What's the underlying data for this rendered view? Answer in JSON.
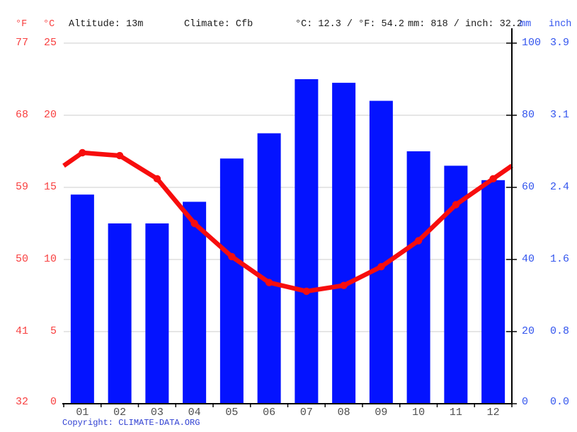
{
  "header": {
    "f_unit": "°F",
    "c_unit": "°C",
    "altitude": "Altitude: 13m",
    "climate": "Climate: Cfb",
    "temperature_summary": "°C: 12.3 / °F: 54.2",
    "precipitation_summary": "mm: 818 / inch: 32.2",
    "mm_unit": "mm",
    "inch_unit": "inch"
  },
  "axis_left": {
    "fahrenheit": [
      "77",
      "68",
      "59",
      "50",
      "41",
      "32"
    ],
    "celsius": [
      "25",
      "20",
      "15",
      "10",
      "5",
      "0"
    ]
  },
  "axis_right": {
    "mm": [
      "100",
      "80",
      "60",
      "40",
      "20",
      "0"
    ],
    "inch": [
      "3.9",
      "3.1",
      "2.4",
      "1.6",
      "0.8",
      "0.0"
    ]
  },
  "months": [
    "01",
    "02",
    "03",
    "04",
    "05",
    "06",
    "07",
    "08",
    "09",
    "10",
    "11",
    "12"
  ],
  "chart_data": {
    "type": "combo",
    "categories": [
      "01",
      "02",
      "03",
      "04",
      "05",
      "06",
      "07",
      "08",
      "09",
      "10",
      "11",
      "12"
    ],
    "series": [
      {
        "name": "Precipitation",
        "type": "bar",
        "unit": "mm",
        "color": "#0413ff",
        "values": [
          58,
          50,
          50,
          56,
          68,
          75,
          90,
          89,
          84,
          70,
          66,
          62
        ],
        "total_mm": 818,
        "total_inch": 32.2
      },
      {
        "name": "Temperature",
        "type": "line",
        "unit": "°C",
        "color": "#f70d0d",
        "values": [
          17.4,
          17.2,
          15.6,
          12.5,
          10.2,
          8.4,
          7.8,
          8.2,
          9.5,
          11.3,
          13.8,
          15.6
        ],
        "mean_c": 12.3,
        "mean_f": 54.2
      }
    ],
    "left_axis": {
      "label": "°C",
      "range": [
        0,
        25
      ],
      "ticks": [
        0,
        5,
        10,
        15,
        20,
        25
      ]
    },
    "left_axis_secondary": {
      "label": "°F",
      "range": [
        32,
        77
      ],
      "ticks": [
        32,
        41,
        50,
        59,
        68,
        77
      ]
    },
    "right_axis": {
      "label": "mm",
      "range": [
        0,
        100
      ],
      "ticks": [
        0,
        20,
        40,
        60,
        80,
        100
      ]
    },
    "right_axis_secondary": {
      "label": "inch",
      "ticks": [
        0.0,
        0.8,
        1.6,
        2.4,
        3.1,
        3.9
      ]
    },
    "grid": true,
    "legend_position": "none",
    "title": ""
  },
  "footer": {
    "copyright_label": "Copyright: ",
    "link_text": "CLIMATE-DATA.ORG"
  },
  "colors": {
    "bar": "#0413ff",
    "line": "#f70d0d",
    "red_text": "#f84040",
    "blue_text": "#3355ee",
    "grid": "#cccccc",
    "axis": "#000000",
    "month_text": "#4d4d4d",
    "footer_blue": "#2e3ed2"
  }
}
